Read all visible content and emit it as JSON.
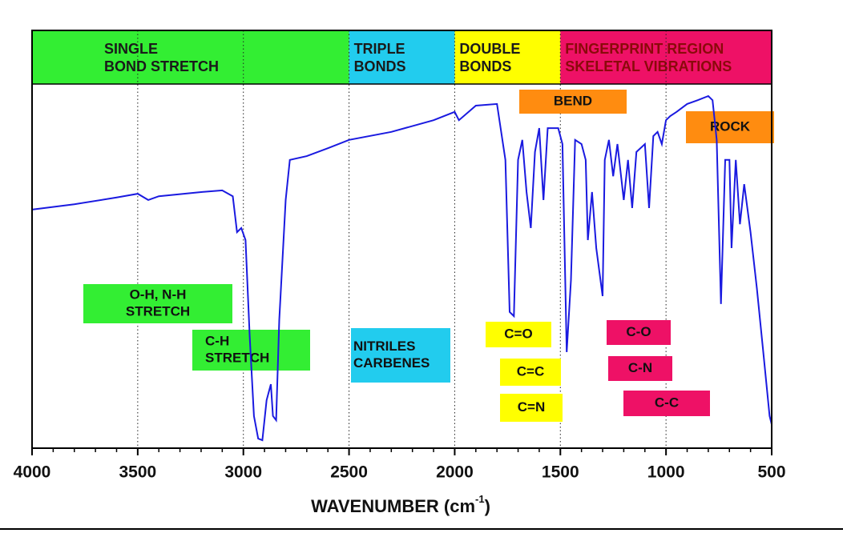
{
  "chart_data": {
    "type": "line",
    "xlabel": {
      "text": "WAVENUMBER (cm",
      "sup": "-1",
      "end": ")"
    },
    "xlim": [
      4000,
      500
    ],
    "xticks": [
      4000,
      3500,
      3000,
      2500,
      2000,
      1500,
      1000,
      500
    ],
    "ylim": [
      0,
      100
    ],
    "grid": true,
    "regions": [
      {
        "lines": [
          "SINGLE",
          "BOND STRETCH"
        ],
        "from": 4000,
        "to": 2500,
        "color": "#33ee33",
        "text_color": "#1a1a1a"
      },
      {
        "lines": [
          "TRIPLE",
          "BONDS"
        ],
        "from": 2500,
        "to": 2000,
        "color": "#22ccee",
        "text_color": "#1a1a1a"
      },
      {
        "lines": [
          "DOUBLE",
          "BONDS"
        ],
        "from": 2000,
        "to": 1500,
        "color": "#ffff00",
        "text_color": "#1a1a1a"
      },
      {
        "lines": [
          "FINGERPRINT REGION",
          "SKELETAL VIBRATIONS"
        ],
        "from": 1500,
        "to": 500,
        "color": "#ee1166",
        "text_color": "#8a0a0a"
      }
    ],
    "annotations": [
      {
        "lines": [
          "BEND"
        ],
        "color": "#ff8c10"
      },
      {
        "lines": [
          "ROCK"
        ],
        "color": "#ff8c10"
      },
      {
        "lines": [
          "O-H, N-H",
          "STRETCH"
        ],
        "color": "#33ee33"
      },
      {
        "lines": [
          "C-H",
          "STRETCH"
        ],
        "color": "#33ee33"
      },
      {
        "lines": [
          "NITRILES",
          "CARBENES"
        ],
        "color": "#22ccee"
      },
      {
        "lines": [
          "C=O"
        ],
        "color": "#ffff00"
      },
      {
        "lines": [
          "C=C"
        ],
        "color": "#ffff00"
      },
      {
        "lines": [
          "C=N"
        ],
        "color": "#ffff00"
      },
      {
        "lines": [
          "C-O"
        ],
        "color": "#ee1166"
      },
      {
        "lines": [
          "C-N"
        ],
        "color": "#ee1166"
      },
      {
        "lines": [
          "C-C"
        ],
        "color": "#ee1166"
      }
    ],
    "series": [
      {
        "color": "#1a1ae0",
        "x": [
          4000,
          3800,
          3600,
          3500,
          3450,
          3400,
          3200,
          3100,
          3050,
          3030,
          3010,
          2990,
          2970,
          2950,
          2930,
          2910,
          2890,
          2870,
          2860,
          2845,
          2830,
          2800,
          2780,
          2700,
          2600,
          2500,
          2300,
          2100,
          2000,
          1980,
          1900,
          1800,
          1760,
          1740,
          1720,
          1700,
          1680,
          1660,
          1640,
          1620,
          1600,
          1580,
          1560,
          1510,
          1490,
          1470,
          1450,
          1430,
          1400,
          1380,
          1370,
          1350,
          1330,
          1300,
          1290,
          1270,
          1250,
          1230,
          1200,
          1180,
          1160,
          1140,
          1100,
          1080,
          1060,
          1040,
          1020,
          1000,
          980,
          950,
          900,
          850,
          800,
          780,
          760,
          740,
          720,
          700,
          690,
          670,
          650,
          630,
          600,
          570,
          540,
          510,
          500
        ],
        "values": [
          57.1,
          58.4,
          60.0,
          60.9,
          59.4,
          60.3,
          61.3,
          61.7,
          60.3,
          51.7,
          52.7,
          49.8,
          26.8,
          7.7,
          2.3,
          1.9,
          11.5,
          15.3,
          7.7,
          6.7,
          30.7,
          59.4,
          69.0,
          69.9,
          71.8,
          73.8,
          75.7,
          78.5,
          80.5,
          78.5,
          82.0,
          82.4,
          69.0,
          32.6,
          31.6,
          69.0,
          73.8,
          61.3,
          52.7,
          70.9,
          76.6,
          59.4,
          76.6,
          76.6,
          72.8,
          23.0,
          40.2,
          73.8,
          72.8,
          69.0,
          49.8,
          61.3,
          47.9,
          36.4,
          69.0,
          73.8,
          65.1,
          72.8,
          59.4,
          69.0,
          57.5,
          70.9,
          72.8,
          57.5,
          74.7,
          75.7,
          72.8,
          78.5,
          79.5,
          80.5,
          82.4,
          83.3,
          84.3,
          83.3,
          73.8,
          34.5,
          69.0,
          69.0,
          47.9,
          69.0,
          53.6,
          63.2,
          51.7,
          38.3,
          23.0,
          7.7,
          5.7
        ]
      }
    ]
  }
}
